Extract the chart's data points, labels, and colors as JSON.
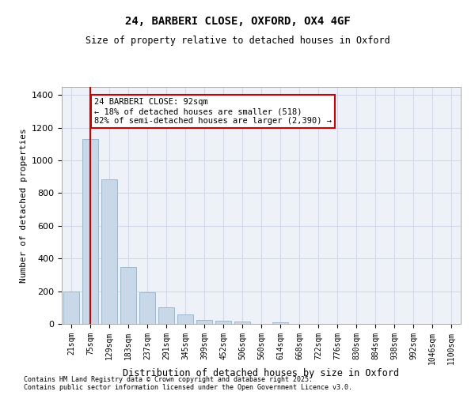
{
  "title1": "24, BARBERI CLOSE, OXFORD, OX4 4GF",
  "title2": "Size of property relative to detached houses in Oxford",
  "xlabel": "Distribution of detached houses by size in Oxford",
  "ylabel": "Number of detached properties",
  "categories": [
    "21sqm",
    "75sqm",
    "129sqm",
    "183sqm",
    "237sqm",
    "291sqm",
    "345sqm",
    "399sqm",
    "452sqm",
    "506sqm",
    "560sqm",
    "614sqm",
    "668sqm",
    "722sqm",
    "776sqm",
    "830sqm",
    "884sqm",
    "938sqm",
    "992sqm",
    "1046sqm",
    "1100sqm"
  ],
  "values": [
    197,
    1130,
    885,
    350,
    193,
    100,
    60,
    25,
    20,
    15,
    0,
    10,
    0,
    0,
    0,
    0,
    0,
    0,
    0,
    0,
    0
  ],
  "bar_color": "#c8d8e8",
  "bar_edge_color": "#a0b8cc",
  "grid_color": "#d0d8e8",
  "bg_color": "#eef2f8",
  "vline_x": 1,
  "vline_color": "#cc0000",
  "annotation_text": "24 BARBERI CLOSE: 92sqm\n← 18% of detached houses are smaller (518)\n82% of semi-detached houses are larger (2,390) →",
  "annotation_box_color": "#cc0000",
  "ylim": [
    0,
    1450
  ],
  "yticks": [
    0,
    200,
    400,
    600,
    800,
    1000,
    1200,
    1400
  ],
  "footer1": "Contains HM Land Registry data © Crown copyright and database right 2025.",
  "footer2": "Contains public sector information licensed under the Open Government Licence v3.0."
}
